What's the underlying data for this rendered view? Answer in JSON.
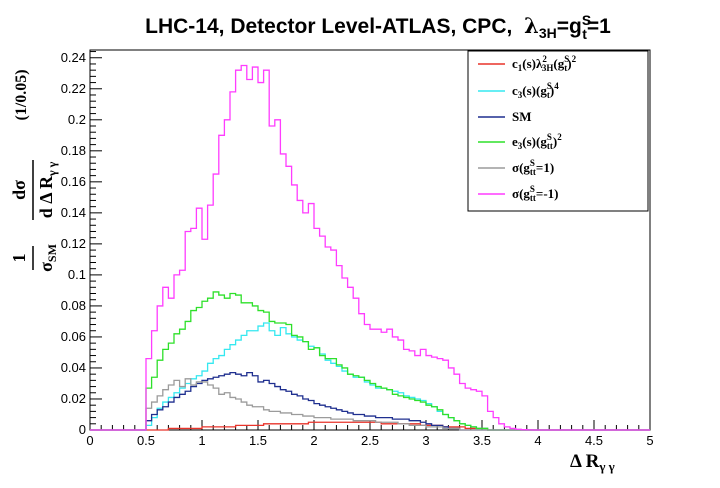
{
  "chart_data": {
    "type": "line",
    "title_prefix": "LHC-14, Detector Level-ATLAS, CPC,",
    "title_formula": "λ3H = gtS = 1",
    "xlabel": "Δ Rγ γ",
    "ylabel": "(1/σSM) dσ/d ΔRγ γ (1/0.05)",
    "xlim": [
      0,
      5
    ],
    "ylim": [
      0,
      0.245
    ],
    "x_ticks": [
      "0",
      "0.5",
      "1",
      "1.5",
      "2",
      "2.5",
      "3",
      "3.5",
      "4",
      "4.5",
      "5"
    ],
    "y_ticks": [
      "0",
      "0.02",
      "0.04",
      "0.06",
      "0.08",
      "0.1",
      "0.12",
      "0.14",
      "0.16",
      "0.18",
      "0.2",
      "0.22",
      "0.24"
    ],
    "y_ticks_values": [
      0,
      0.02,
      0.04,
      0.06,
      0.08,
      0.1,
      0.12,
      0.14,
      0.16,
      0.18,
      0.2,
      0.22,
      0.24
    ],
    "x_ticks_values": [
      0,
      0.5,
      1,
      1.5,
      2,
      2.5,
      3,
      3.5,
      4,
      4.5,
      5
    ],
    "legend_position": "top-right",
    "bin_width": 0.05,
    "x": [
      0.45,
      0.5,
      0.55,
      0.6,
      0.65,
      0.7,
      0.75,
      0.8,
      0.85,
      0.9,
      0.95,
      1.0,
      1.05,
      1.1,
      1.15,
      1.2,
      1.25,
      1.3,
      1.35,
      1.4,
      1.45,
      1.5,
      1.55,
      1.6,
      1.65,
      1.7,
      1.75,
      1.8,
      1.85,
      1.9,
      1.95,
      2.0,
      2.05,
      2.1,
      2.15,
      2.2,
      2.25,
      2.3,
      2.35,
      2.4,
      2.45,
      2.5,
      2.55,
      2.6,
      2.65,
      2.7,
      2.75,
      2.8,
      2.85,
      2.9,
      2.95,
      3.0,
      3.05,
      3.1,
      3.15,
      3.2,
      3.25,
      3.3,
      3.35,
      3.4,
      3.45,
      3.5,
      3.55,
      3.6,
      3.65,
      3.7,
      3.75,
      3.8,
      3.85,
      3.9,
      3.95
    ],
    "series": [
      {
        "name": "c1(s)λ3H²(gtS)²",
        "color": "#e8332a",
        "values": [
          0,
          0,
          0,
          0,
          0,
          0.001,
          0.001,
          0.001,
          0.001,
          0.001,
          0.001,
          0.002,
          0.002,
          0.002,
          0.002,
          0.002,
          0.002,
          0.003,
          0.003,
          0.003,
          0.003,
          0.003,
          0.004,
          0.004,
          0.004,
          0.004,
          0.004,
          0.004,
          0.004,
          0.004,
          0.005,
          0.005,
          0.005,
          0.005,
          0.005,
          0.005,
          0.005,
          0.005,
          0.005,
          0.005,
          0.005,
          0.005,
          0.005,
          0.004,
          0.004,
          0.004,
          0.004,
          0.004,
          0.004,
          0.004,
          0.003,
          0.003,
          0.003,
          0.003,
          0.002,
          0.002,
          0.002,
          0.002,
          0.001,
          0.001,
          0.001,
          0.001,
          0,
          0,
          0,
          0,
          0,
          0,
          0,
          0,
          0
        ]
      },
      {
        "name": "c3(s)(gtS)⁴",
        "color": "#35e8f0",
        "values": [
          0,
          0.003,
          0.008,
          0.014,
          0.018,
          0.021,
          0.024,
          0.027,
          0.03,
          0.033,
          0.035,
          0.038,
          0.043,
          0.046,
          0.048,
          0.052,
          0.055,
          0.058,
          0.061,
          0.064,
          0.064,
          0.067,
          0.069,
          0.064,
          0.061,
          0.066,
          0.062,
          0.06,
          0.058,
          0.057,
          0.054,
          0.053,
          0.049,
          0.045,
          0.043,
          0.041,
          0.038,
          0.036,
          0.034,
          0.034,
          0.031,
          0.029,
          0.027,
          0.027,
          0.026,
          0.025,
          0.024,
          0.022,
          0.021,
          0.02,
          0.019,
          0.017,
          0.015,
          0.012,
          0.01,
          0.008,
          0.006,
          0.004,
          0.003,
          0.002,
          0.001,
          0.001,
          0,
          0,
          0,
          0,
          0,
          0,
          0,
          0,
          0
        ]
      },
      {
        "name": "SM",
        "color": "#1f2f8f",
        "values": [
          0,
          0.006,
          0.01,
          0.013,
          0.015,
          0.018,
          0.021,
          0.023,
          0.025,
          0.028,
          0.03,
          0.032,
          0.033,
          0.034,
          0.035,
          0.036,
          0.037,
          0.036,
          0.035,
          0.037,
          0.035,
          0.031,
          0.032,
          0.03,
          0.028,
          0.026,
          0.025,
          0.023,
          0.022,
          0.02,
          0.019,
          0.017,
          0.016,
          0.015,
          0.014,
          0.013,
          0.012,
          0.011,
          0.01,
          0.01,
          0.009,
          0.009,
          0.008,
          0.008,
          0.008,
          0.007,
          0.007,
          0.007,
          0.006,
          0.006,
          0.005,
          0.004,
          0.003,
          0.003,
          0.002,
          0.001,
          0.001,
          0,
          0,
          0,
          0,
          0,
          0,
          0,
          0,
          0,
          0,
          0,
          0,
          0,
          0
        ]
      },
      {
        "name": "e3(s)(gttS)²",
        "color": "#2ee02a",
        "values": [
          0,
          0.027,
          0.034,
          0.045,
          0.052,
          0.056,
          0.062,
          0.065,
          0.07,
          0.077,
          0.079,
          0.083,
          0.085,
          0.089,
          0.087,
          0.085,
          0.088,
          0.087,
          0.082,
          0.082,
          0.08,
          0.077,
          0.076,
          0.07,
          0.069,
          0.069,
          0.068,
          0.061,
          0.06,
          0.057,
          0.052,
          0.053,
          0.048,
          0.046,
          0.046,
          0.042,
          0.04,
          0.036,
          0.035,
          0.034,
          0.032,
          0.03,
          0.028,
          0.027,
          0.026,
          0.023,
          0.022,
          0.021,
          0.02,
          0.019,
          0.018,
          0.016,
          0.015,
          0.013,
          0.01,
          0.008,
          0.006,
          0.004,
          0.003,
          0.002,
          0.001,
          0.001,
          0,
          0,
          0,
          0,
          0,
          0,
          0,
          0,
          0
        ]
      },
      {
        "name": "σ(gttS=1)",
        "color": "#9b9b9b",
        "values": [
          0,
          0.014,
          0.018,
          0.022,
          0.026,
          0.029,
          0.032,
          0.028,
          0.033,
          0.029,
          0.031,
          0.031,
          0.029,
          0.027,
          0.023,
          0.024,
          0.021,
          0.02,
          0.018,
          0.016,
          0.015,
          0.015,
          0.013,
          0.012,
          0.012,
          0.011,
          0.011,
          0.01,
          0.01,
          0.009,
          0.009,
          0.008,
          0.008,
          0.008,
          0.007,
          0.007,
          0.007,
          0.007,
          0.006,
          0.006,
          0.006,
          0.006,
          0.005,
          0.005,
          0.005,
          0.005,
          0.004,
          0.004,
          0.003,
          0.003,
          0.003,
          0.002,
          0.002,
          0.002,
          0.001,
          0.001,
          0.001,
          0,
          0,
          0,
          0,
          0,
          0,
          0,
          0,
          0,
          0,
          0,
          0,
          0,
          0
        ]
      },
      {
        "name": "σ(gttS=-1)",
        "color": "#ff3cff",
        "values": [
          0,
          0.046,
          0.064,
          0.08,
          0.092,
          0.085,
          0.1,
          0.103,
          0.128,
          0.13,
          0.143,
          0.123,
          0.145,
          0.165,
          0.19,
          0.2,
          0.218,
          0.232,
          0.235,
          0.226,
          0.234,
          0.224,
          0.232,
          0.196,
          0.2,
          0.178,
          0.17,
          0.158,
          0.148,
          0.14,
          0.146,
          0.13,
          0.125,
          0.118,
          0.116,
          0.106,
          0.098,
          0.092,
          0.085,
          0.075,
          0.068,
          0.065,
          0.065,
          0.063,
          0.065,
          0.06,
          0.058,
          0.052,
          0.051,
          0.048,
          0.052,
          0.048,
          0.047,
          0.046,
          0.045,
          0.04,
          0.036,
          0.03,
          0.027,
          0.026,
          0.025,
          0.022,
          0.012,
          0.008,
          0.004,
          0.002,
          0.001,
          0.0005,
          0.0002,
          0.0001,
          0
        ]
      }
    ]
  },
  "legend": {
    "items": [
      {
        "name": "c1(s)λ3H²(gtS)²"
      },
      {
        "name": "c3(s)(gtS)⁴"
      },
      {
        "name": "SM"
      },
      {
        "name": "e3(s)(gttS)²"
      },
      {
        "name": "σ(gttS=1)"
      },
      {
        "name": "σ(gttS=-1)"
      }
    ]
  }
}
